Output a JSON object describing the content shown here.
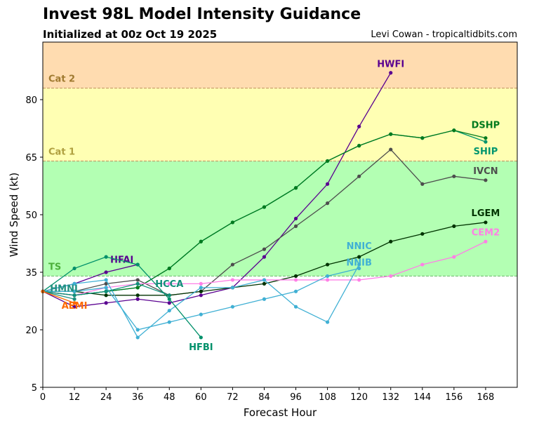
{
  "chart_data": {
    "type": "line",
    "title": "Invest 98L Model Intensity Guidance",
    "subtitle": "Initialized at 00z Oct 19 2025",
    "credit": "Levi Cowan - tropicaltidbits.com",
    "xlabel": "Forecast Hour",
    "ylabel": "Wind Speed (kt)",
    "xlim": [
      0,
      180
    ],
    "ylim": [
      5,
      95
    ],
    "xticks": [
      0,
      12,
      24,
      36,
      48,
      60,
      72,
      84,
      96,
      108,
      120,
      132,
      144,
      156,
      168
    ],
    "yticks": [
      5,
      20,
      35,
      50,
      65,
      80
    ],
    "grid": false,
    "bands": [
      {
        "label": "TS",
        "from": 34,
        "to": 64,
        "color": "#b3ffb3",
        "label_color": "#4caf3a"
      },
      {
        "label": "Cat 1",
        "from": 64,
        "to": 83,
        "color": "#ffffb3",
        "label_color": "#b0a040"
      },
      {
        "label": "Cat 2",
        "from": 83,
        "to": 95,
        "color": "#ffdcb0",
        "label_color": "#a07a30"
      }
    ],
    "series": [
      {
        "name": "HWFI",
        "color": "#5a0090",
        "x": [
          0,
          12,
          24,
          36,
          48,
          60,
          72,
          84,
          96,
          108,
          120,
          132
        ],
        "values": [
          30,
          26,
          27,
          28,
          27,
          29,
          31,
          39,
          49,
          58,
          73,
          87
        ]
      },
      {
        "name": "HFAI",
        "color": "#5a0090",
        "x": [
          0,
          12,
          24,
          36
        ],
        "values": [
          30,
          32,
          35,
          37
        ]
      },
      {
        "name": "SHIP",
        "color": "#00966e",
        "x": [
          0,
          12,
          24,
          36,
          48,
          60,
          72,
          84,
          96,
          108,
          120,
          132,
          144,
          156,
          168
        ],
        "values": [
          30,
          29,
          30,
          31,
          36,
          43,
          48,
          52,
          57,
          64,
          68,
          71,
          70,
          72,
          69
        ]
      },
      {
        "name": "DSHP",
        "color": "#007a1e",
        "x": [
          0,
          12,
          24,
          36,
          48,
          60,
          72,
          84,
          96,
          108,
          120,
          132,
          144,
          156,
          168
        ],
        "values": [
          30,
          29,
          30,
          31,
          36,
          43,
          48,
          52,
          57,
          64,
          68,
          71,
          70,
          72,
          70
        ]
      },
      {
        "name": "IVCN",
        "color": "#4d4d4d",
        "x": [
          0,
          12,
          24,
          36,
          48,
          60,
          72,
          84,
          96,
          108,
          120,
          132,
          144,
          156,
          168
        ],
        "values": [
          30,
          30,
          32,
          33,
          29,
          30,
          37,
          41,
          47,
          53,
          60,
          67,
          58,
          60,
          59
        ]
      },
      {
        "name": "LGEM",
        "color": "#003300",
        "x": [
          0,
          12,
          24,
          36,
          48,
          60,
          72,
          84,
          96,
          108,
          120,
          132,
          144,
          156,
          168
        ],
        "values": [
          30,
          30,
          29,
          29,
          29,
          30,
          31,
          32,
          34,
          37,
          39,
          43,
          45,
          47,
          48
        ]
      },
      {
        "name": "CEM2",
        "color": "#ff80e6",
        "x": [
          0,
          12,
          24,
          36,
          48,
          60,
          72,
          84,
          96,
          108,
          120,
          132,
          144,
          156,
          168
        ],
        "values": [
          30,
          29,
          31,
          32,
          32,
          32,
          33,
          33,
          33,
          33,
          33,
          34,
          37,
          39,
          43
        ]
      },
      {
        "name": "NNIC",
        "color": "#40b0d4",
        "x": [
          0,
          12,
          24,
          36,
          48,
          60,
          72,
          84,
          96,
          108,
          120
        ],
        "values": [
          30,
          32,
          33,
          18,
          25,
          31,
          31,
          33,
          26,
          22,
          37
        ]
      },
      {
        "name": "NNIB",
        "color": "#40b0d4",
        "x": [
          0,
          12,
          24,
          36,
          48,
          60,
          72,
          84,
          96,
          108,
          120
        ],
        "values": [
          30,
          30,
          31,
          20,
          22,
          24,
          26,
          28,
          30,
          34,
          36
        ]
      },
      {
        "name": "HFBI",
        "color": "#00906a",
        "x": [
          0,
          12,
          24,
          36,
          48,
          60
        ],
        "values": [
          30,
          36,
          39,
          37,
          28,
          18
        ]
      },
      {
        "name": "HCCA",
        "color": "#10907a",
        "x": [
          0,
          12,
          24,
          36,
          48
        ],
        "values": [
          30,
          29,
          30,
          32,
          29
        ]
      },
      {
        "name": "HMNI",
        "color": "#209080",
        "x": [
          0,
          12
        ],
        "values": [
          30,
          28
        ]
      },
      {
        "name": "AEMI",
        "color": "#ff6a00",
        "x": [
          0,
          12
        ],
        "values": [
          30,
          27
        ]
      }
    ]
  }
}
